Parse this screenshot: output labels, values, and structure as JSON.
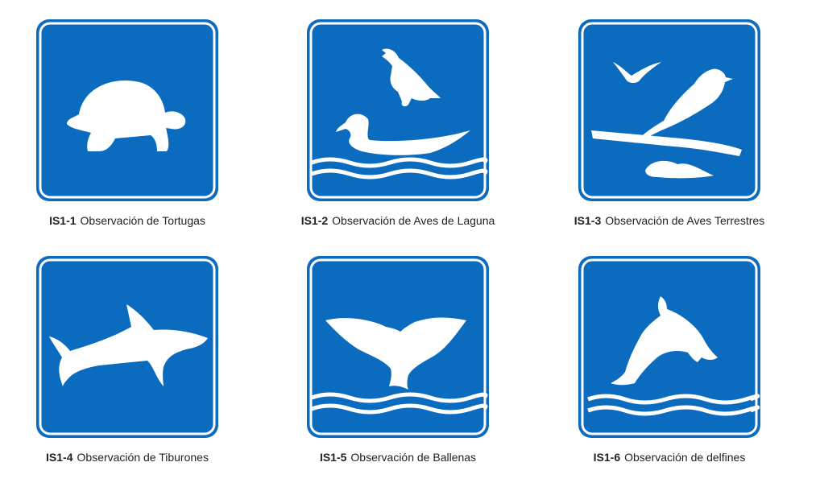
{
  "colors": {
    "sign_blue": "#0b6bbf",
    "symbol": "#ffffff",
    "caption_text": "#222222"
  },
  "signs": [
    {
      "code": "IS1-1",
      "title": "Observación de Tortugas",
      "icon": "tortoise-icon"
    },
    {
      "code": "IS1-2",
      "title": "Observación de Aves de Laguna",
      "icon": "water-birds-icon"
    },
    {
      "code": "IS1-3",
      "title": "Observación de Aves Terrestres",
      "icon": "land-birds-icon"
    },
    {
      "code": "IS1-4",
      "title": "Observación de Tiburones",
      "icon": "shark-icon"
    },
    {
      "code": "IS1-5",
      "title": "Observación de Ballenas",
      "icon": "whale-tail-icon"
    },
    {
      "code": "IS1-6",
      "title": "Observación de delfines",
      "icon": "dolphin-icon"
    }
  ]
}
